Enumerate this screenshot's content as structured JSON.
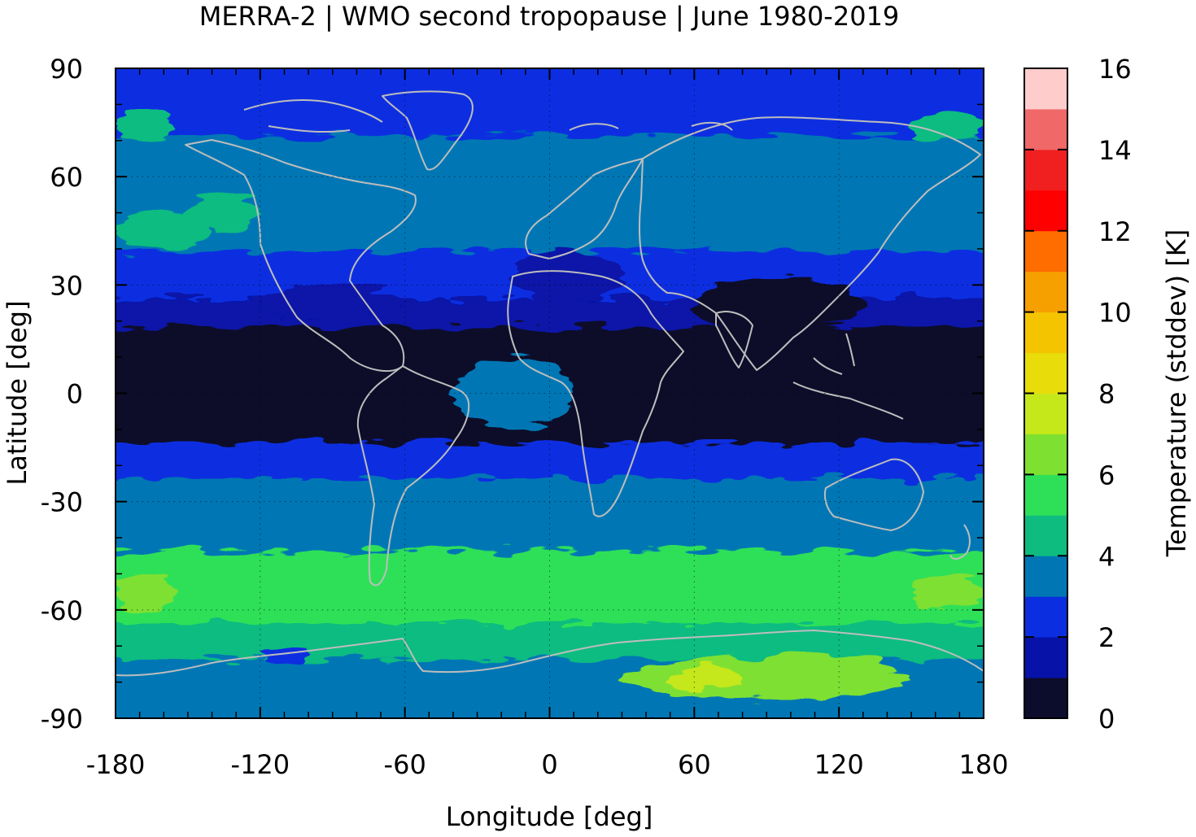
{
  "chart_data": {
    "type": "heatmap",
    "title": "MERRA-2 | WMO second tropopause | June 1980-2019",
    "xlabel": "Longitude [deg]",
    "ylabel": "Latitude [deg]",
    "xlim": [
      -180,
      180
    ],
    "ylim": [
      -90,
      90
    ],
    "x_ticks": [
      "-180",
      "-120",
      "-60",
      "0",
      "60",
      "120",
      "180"
    ],
    "y_ticks": [
      "90",
      "60",
      "30",
      "0",
      "-30",
      "-60",
      "-90"
    ],
    "grid": true,
    "colorbar": {
      "label": "Temperature (stddev) [K]",
      "range": [
        0,
        16
      ],
      "ticks": [
        "0",
        "2",
        "4",
        "6",
        "8",
        "10",
        "12",
        "14",
        "16"
      ],
      "levels": [
        0,
        1,
        2,
        3,
        4,
        5,
        6,
        7,
        8,
        9,
        10,
        11,
        12,
        13,
        14,
        15,
        16
      ],
      "colors": [
        "#0c0c2c",
        "#0712a8",
        "#0a2ee0",
        "#0077b4",
        "#0ebc80",
        "#2ee058",
        "#7ee030",
        "#c4e81a",
        "#e8dc0a",
        "#f4c400",
        "#f6a000",
        "#ff6c00",
        "#ff0000",
        "#f02020",
        "#f06868",
        "#ffcccc"
      ]
    },
    "zonal_bands": [
      {
        "lat": [
          80,
          90
        ],
        "stddev_k": 2.5
      },
      {
        "lat": [
          70,
          80
        ],
        "stddev_k": 2.8
      },
      {
        "lat": [
          50,
          70
        ],
        "stddev_k": 3.3
      },
      {
        "lat": [
          38,
          50
        ],
        "stddev_k": 3.6
      },
      {
        "lat": [
          25,
          38
        ],
        "stddev_k": 2.3
      },
      {
        "lat": [
          17,
          25
        ],
        "stddev_k": 1.7
      },
      {
        "lat": [
          -15,
          17
        ],
        "stddev_k": 0.6
      },
      {
        "lat": [
          -25,
          -15
        ],
        "stddev_k": 2.5
      },
      {
        "lat": [
          -45,
          -25
        ],
        "stddev_k": 3.5
      },
      {
        "lat": [
          -65,
          -45
        ],
        "stddev_k": 5.3
      },
      {
        "lat": [
          -75,
          -65
        ],
        "stddev_k": 4.3
      },
      {
        "lat": [
          -90,
          -75
        ],
        "stddev_k": 3.6
      }
    ],
    "features": [
      {
        "lon": [
          -180,
          -155
        ],
        "lat": [
          -60,
          -50
        ],
        "stddev_k": 6.6
      },
      {
        "lon": [
          150,
          180
        ],
        "lat": [
          -60,
          -50
        ],
        "stddev_k": 6.3
      },
      {
        "lon": [
          30,
          150
        ],
        "lat": [
          -85,
          -73
        ],
        "stddev_k": 6.5
      },
      {
        "lon": [
          50,
          80
        ],
        "lat": [
          -82,
          -76
        ],
        "stddev_k": 7.5
      },
      {
        "lon": [
          90,
          140
        ],
        "lat": [
          -78,
          -72
        ],
        "stddev_k": 6.8
      },
      {
        "lon": [
          -120,
          -100
        ],
        "lat": [
          -75,
          -70
        ],
        "stddev_k": 2.5
      },
      {
        "lon": [
          -15,
          30
        ],
        "lat": [
          25,
          40
        ],
        "stddev_k": 1.6
      },
      {
        "lon": [
          60,
          130
        ],
        "lat": [
          17,
          32
        ],
        "stddev_k": 0.6
      },
      {
        "lon": [
          -120,
          -60
        ],
        "lat": [
          20,
          30
        ],
        "stddev_k": 1.6
      },
      {
        "lon": [
          -40,
          10
        ],
        "lat": [
          -10,
          10
        ],
        "stddev_k": 3.3
      },
      {
        "lon": [
          -180,
          -140
        ],
        "lat": [
          40,
          50
        ],
        "stddev_k": 4.3
      },
      {
        "lon": [
          -150,
          -120
        ],
        "lat": [
          45,
          55
        ],
        "stddev_k": 4.4
      },
      {
        "lon": [
          -180,
          -155
        ],
        "lat": [
          70,
          78
        ],
        "stddev_k": 4.4
      },
      {
        "lon": [
          150,
          180
        ],
        "lat": [
          70,
          78
        ],
        "stddev_k": 4.2
      }
    ]
  }
}
